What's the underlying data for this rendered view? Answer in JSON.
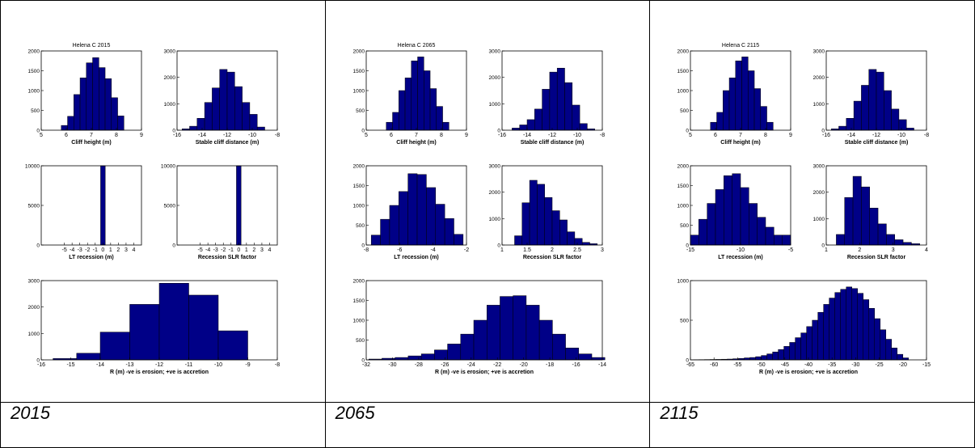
{
  "captions": [
    "2015",
    "2065",
    "2115"
  ],
  "colors": {
    "bar": "#000087",
    "axis": "#000000"
  },
  "chart_data": [
    {
      "figure": 0,
      "subplot": "a",
      "type": "bar",
      "title": "Helena C 2015",
      "xlabel": "Cliff height (m)",
      "ylabel": "",
      "xlim": [
        5,
        9
      ],
      "ylim": [
        0,
        2000
      ],
      "xticks": [
        5,
        6,
        7,
        8,
        9
      ],
      "yticks": [
        0,
        500,
        1000,
        1500,
        2000
      ],
      "edges": [
        5.8,
        6.05,
        6.3,
        6.55,
        6.8,
        7.05,
        7.3,
        7.55,
        7.8,
        8.05,
        8.3
      ],
      "values": [
        120,
        350,
        900,
        1320,
        1700,
        1830,
        1580,
        1300,
        820,
        360,
        0
      ]
    },
    {
      "figure": 0,
      "subplot": "b",
      "type": "bar",
      "title": "",
      "xlabel": "Stable cliff distance (m)",
      "ylabel": "",
      "xlim": [
        -16,
        -8
      ],
      "ylim": [
        0,
        3000
      ],
      "xticks": [
        -16,
        -14,
        -12,
        -10,
        -8
      ],
      "yticks": [
        0,
        1000,
        2000,
        3000
      ],
      "edges": [
        -15.6,
        -15.0,
        -14.4,
        -13.8,
        -13.2,
        -12.6,
        -12.0,
        -11.4,
        -10.8,
        -10.2,
        -9.6,
        -9.0
      ],
      "values": [
        50,
        150,
        450,
        1050,
        1600,
        2300,
        2200,
        1650,
        1050,
        600,
        120
      ]
    },
    {
      "figure": 0,
      "subplot": "c",
      "type": "bar",
      "title": "",
      "xlabel": "LT recession (m)",
      "ylabel": "",
      "xlim": [
        -8,
        5
      ],
      "ylim": [
        0,
        10000
      ],
      "xticks": [
        -5,
        -4,
        -3,
        -2,
        -1,
        0,
        1,
        2,
        3,
        4
      ],
      "yticks": [
        0,
        5000,
        10000
      ],
      "edges": [
        -0.3,
        0.3
      ],
      "values": [
        10000
      ]
    },
    {
      "figure": 0,
      "subplot": "d",
      "type": "bar",
      "title": "",
      "xlabel": "Recession SLR factor",
      "ylabel": "",
      "xlim": [
        -8,
        5
      ],
      "ylim": [
        0,
        10000
      ],
      "xticks": [
        -5,
        -4,
        -3,
        -2,
        -1,
        0,
        1,
        2,
        3,
        4
      ],
      "yticks": [
        0,
        5000,
        10000
      ],
      "edges": [
        -0.3,
        0.3
      ],
      "values": [
        10000
      ]
    },
    {
      "figure": 0,
      "subplot": "e",
      "type": "bar",
      "title": "",
      "xlabel": "R (m) -ve is erosion; +ve is accretion",
      "ylabel": "",
      "xlim": [
        -16,
        -8
      ],
      "ylim": [
        0,
        3000
      ],
      "xticks": [
        -16,
        -15,
        -14,
        -13,
        -12,
        -11,
        -10,
        -9,
        -8
      ],
      "yticks": [
        0,
        1000,
        2000,
        3000
      ],
      "edges": [
        -15.6,
        -14.8,
        -14.0,
        -13.0,
        -12.0,
        -11.0,
        -10.0,
        -9.0
      ],
      "values": [
        50,
        250,
        1050,
        2100,
        2900,
        2450,
        1100,
        150
      ]
    },
    {
      "figure": 1,
      "subplot": "a",
      "type": "bar",
      "title": "Helena C 2065",
      "xlabel": "Cliff height (m)",
      "ylabel": "",
      "xlim": [
        5,
        9
      ],
      "ylim": [
        0,
        2000
      ],
      "xticks": [
        5,
        6,
        7,
        8,
        9
      ],
      "yticks": [
        0,
        500,
        1000,
        1500,
        2000
      ],
      "edges": [
        5.8,
        6.05,
        6.3,
        6.55,
        6.8,
        7.05,
        7.3,
        7.55,
        7.8,
        8.05,
        8.3
      ],
      "values": [
        200,
        450,
        1000,
        1320,
        1750,
        1850,
        1500,
        1050,
        600,
        200,
        0
      ]
    },
    {
      "figure": 1,
      "subplot": "b",
      "type": "bar",
      "title": "",
      "xlabel": "Stable cliff distance (m)",
      "ylabel": "",
      "xlim": [
        -16,
        -8
      ],
      "ylim": [
        0,
        3000
      ],
      "xticks": [
        -16,
        -14,
        -12,
        -10,
        -8
      ],
      "yticks": [
        0,
        1000,
        2000,
        3000
      ],
      "edges": [
        -15.2,
        -14.6,
        -14.0,
        -13.4,
        -12.8,
        -12.2,
        -11.6,
        -11.0,
        -10.4,
        -9.8,
        -9.2,
        -8.6
      ],
      "values": [
        80,
        200,
        400,
        800,
        1550,
        2200,
        2350,
        1800,
        950,
        250,
        50
      ]
    },
    {
      "figure": 1,
      "subplot": "c",
      "type": "bar",
      "title": "",
      "xlabel": "LT recession (m)",
      "ylabel": "",
      "xlim": [
        -8,
        -2
      ],
      "ylim": [
        0,
        2000
      ],
      "xticks": [
        -8,
        -6,
        -4,
        -2
      ],
      "yticks": [
        0,
        500,
        1000,
        1500,
        2000
      ],
      "edges": [
        -7.7,
        -7.15,
        -6.6,
        -6.05,
        -5.5,
        -4.95,
        -4.4,
        -3.85,
        -3.3,
        -2.75,
        -2.2
      ],
      "values": [
        250,
        650,
        1000,
        1350,
        1800,
        1780,
        1450,
        1030,
        670,
        270
      ]
    },
    {
      "figure": 1,
      "subplot": "d",
      "type": "bar",
      "title": "",
      "xlabel": "Recession SLR factor",
      "ylabel": "",
      "xlim": [
        1,
        3
      ],
      "ylim": [
        0,
        3000
      ],
      "xticks": [
        1,
        1.5,
        2,
        2.5,
        3
      ],
      "yticks": [
        0,
        1000,
        2000,
        3000
      ],
      "edges": [
        1.25,
        1.4,
        1.55,
        1.7,
        1.85,
        2.0,
        2.15,
        2.3,
        2.45,
        2.6,
        2.75,
        2.9
      ],
      "values": [
        350,
        1600,
        2450,
        2300,
        1800,
        1300,
        950,
        500,
        250,
        100,
        50
      ]
    },
    {
      "figure": 1,
      "subplot": "e",
      "type": "bar",
      "title": "",
      "xlabel": "R (m) -ve is erosion; +ve is accretion",
      "ylabel": "",
      "xlim": [
        -32,
        -14
      ],
      "ylim": [
        0,
        2000
      ],
      "xticks": [
        -32,
        -30,
        -28,
        -26,
        -24,
        -22,
        -20,
        -18,
        -16,
        -14
      ],
      "yticks": [
        0,
        500,
        1000,
        1500,
        2000
      ],
      "edges": [
        -31.8,
        -30.8,
        -29.8,
        -28.8,
        -27.8,
        -26.8,
        -25.8,
        -24.8,
        -23.8,
        -22.8,
        -21.8,
        -20.8,
        -19.8,
        -18.8,
        -17.8,
        -16.8,
        -15.8,
        -14.8,
        -13.8
      ],
      "values": [
        20,
        40,
        60,
        100,
        150,
        250,
        400,
        650,
        1000,
        1380,
        1600,
        1620,
        1380,
        1000,
        650,
        300,
        150,
        60
      ]
    },
    {
      "figure": 2,
      "subplot": "a",
      "type": "bar",
      "title": "Helena C 2115",
      "xlabel": "Cliff height (m)",
      "ylabel": "",
      "xlim": [
        5,
        9
      ],
      "ylim": [
        0,
        2000
      ],
      "xticks": [
        5,
        6,
        7,
        8,
        9
      ],
      "yticks": [
        0,
        500,
        1000,
        1500,
        2000
      ],
      "edges": [
        5.8,
        6.05,
        6.3,
        6.55,
        6.8,
        7.05,
        7.3,
        7.55,
        7.8,
        8.05,
        8.3
      ],
      "values": [
        200,
        450,
        1000,
        1320,
        1750,
        1850,
        1500,
        1050,
        600,
        200,
        0
      ]
    },
    {
      "figure": 2,
      "subplot": "b",
      "type": "bar",
      "title": "",
      "xlabel": "Stable cliff distance (m)",
      "ylabel": "",
      "xlim": [
        -16,
        -8
      ],
      "ylim": [
        0,
        3000
      ],
      "xticks": [
        -16,
        -14,
        -12,
        -10,
        -8
      ],
      "yticks": [
        0,
        1000,
        2000,
        3000
      ],
      "edges": [
        -15.6,
        -15.0,
        -14.4,
        -13.8,
        -13.2,
        -12.6,
        -12.0,
        -11.4,
        -10.8,
        -10.2,
        -9.6,
        -9.0
      ],
      "values": [
        50,
        150,
        450,
        1100,
        1700,
        2300,
        2200,
        1500,
        800,
        400,
        80
      ]
    },
    {
      "figure": 2,
      "subplot": "c",
      "type": "bar",
      "title": "",
      "xlabel": "LT recession (m)",
      "ylabel": "",
      "xlim": [
        -15,
        -5
      ],
      "ylim": [
        0,
        2000
      ],
      "xticks": [
        -15,
        -10,
        -5
      ],
      "yticks": [
        0,
        500,
        1000,
        1500,
        2000
      ],
      "edges": [
        -15.0,
        -14.17,
        -13.33,
        -12.5,
        -11.67,
        -10.83,
        -10.0,
        -9.17,
        -8.33,
        -7.5,
        -6.67,
        -5.83,
        -5.0
      ],
      "values": [
        250,
        650,
        1050,
        1400,
        1750,
        1800,
        1450,
        1050,
        700,
        450,
        250,
        250
      ]
    },
    {
      "figure": 2,
      "subplot": "d",
      "type": "bar",
      "title": "",
      "xlabel": "Recession SLR factor",
      "ylabel": "",
      "xlim": [
        1,
        4
      ],
      "ylim": [
        0,
        3000
      ],
      "xticks": [
        1,
        2,
        3,
        4
      ],
      "yticks": [
        0,
        1000,
        2000,
        3000
      ],
      "edges": [
        1.3,
        1.55,
        1.8,
        2.05,
        2.3,
        2.55,
        2.8,
        3.05,
        3.3,
        3.55,
        3.8
      ],
      "values": [
        400,
        1800,
        2600,
        2200,
        1400,
        800,
        400,
        200,
        100,
        50
      ]
    },
    {
      "figure": 2,
      "subplot": "e",
      "type": "bar",
      "title": "",
      "xlabel": "R (m) -ve is erosion; +ve is accretion",
      "ylabel": "",
      "xlim": [
        -65,
        -15
      ],
      "ylim": [
        0,
        1000
      ],
      "xticks": [
        -65,
        -60,
        -55,
        -50,
        -45,
        -40,
        -35,
        -30,
        -25,
        -20,
        -15
      ],
      "yticks": [
        0,
        500,
        1000
      ],
      "edges": [
        -64.4,
        -63.2,
        -62.0,
        -60.8,
        -59.6,
        -58.4,
        -57.2,
        -56.0,
        -54.8,
        -53.6,
        -52.4,
        -51.2,
        -50.0,
        -48.8,
        -47.6,
        -46.4,
        -45.2,
        -44.0,
        -42.8,
        -41.6,
        -40.4,
        -39.2,
        -38.0,
        -36.8,
        -35.6,
        -34.4,
        -33.2,
        -32.0,
        -30.8,
        -29.6,
        -28.4,
        -27.2,
        -26.0,
        -24.8,
        -23.6,
        -22.4,
        -21.2,
        -20.0,
        -18.8
      ],
      "values": [
        2,
        3,
        4,
        5,
        6,
        8,
        10,
        14,
        18,
        25,
        30,
        40,
        55,
        75,
        100,
        130,
        170,
        220,
        280,
        340,
        420,
        500,
        600,
        700,
        780,
        850,
        890,
        920,
        900,
        840,
        760,
        650,
        520,
        380,
        260,
        150,
        70,
        25
      ]
    }
  ]
}
